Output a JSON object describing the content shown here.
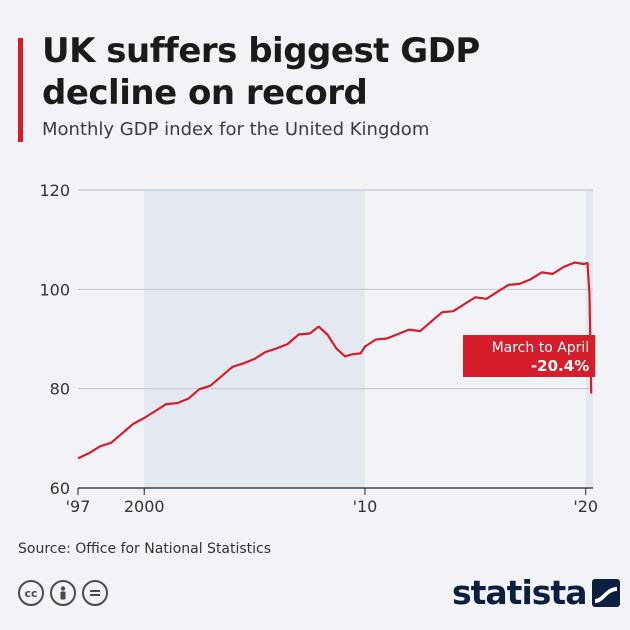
{
  "header": {
    "title": "UK suffers biggest GDP decline on record",
    "subtitle": "Monthly GDP index for the United Kingdom"
  },
  "footer": {
    "source": "Source: Office for National Statistics",
    "brand": "statista",
    "license_icons": [
      "cc-icon",
      "by-icon",
      "nd-icon"
    ]
  },
  "colors": {
    "accent": "#d51d2c",
    "line": "#d51d2c",
    "shade": "#e4e9f1",
    "brand": "#0d1f3f"
  },
  "chart_data": {
    "type": "line",
    "title": "UK suffers biggest GDP decline on record",
    "subtitle": "Monthly GDP index for the United Kingdom",
    "xlabel": "",
    "ylabel": "",
    "ylim": [
      60,
      120
    ],
    "yticks": [
      60,
      80,
      100,
      120
    ],
    "xlim": [
      1997,
      2020.33
    ],
    "xticks": [
      {
        "value": 1997,
        "label": "'97"
      },
      {
        "value": 2000,
        "label": "2000"
      },
      {
        "value": 2010,
        "label": "'10"
      },
      {
        "value": 2020,
        "label": "'20"
      }
    ],
    "grid": true,
    "shaded_ranges": [
      [
        2000,
        2010
      ],
      [
        2020,
        2020.33
      ]
    ],
    "annotation": {
      "line1": "March to April",
      "line2": "-20.4%",
      "x": 2020.25,
      "y": 79
    },
    "series": [
      {
        "x": [
          1997,
          1997.5,
          1998,
          1998.5,
          1999,
          1999.5,
          2000,
          2000.5,
          2001,
          2001.5,
          2002,
          2002.5,
          2003,
          2003.5,
          2004,
          2004.5,
          2005,
          2005.5,
          2006,
          2006.5,
          2007,
          2007.5,
          2007.9,
          2008.3,
          2008.7,
          2009.1,
          2009.4,
          2009.8,
          2010,
          2010.5,
          2011,
          2011.5,
          2012,
          2012.5,
          2013,
          2013.5,
          2014,
          2014.5,
          2015,
          2015.5,
          2016,
          2016.5,
          2017,
          2017.5,
          2018,
          2018.5,
          2019,
          2019.5,
          2019.9,
          2020.08,
          2020.17,
          2020.25
        ],
        "y": [
          66,
          67,
          68,
          69.5,
          71,
          72.5,
          74.5,
          75.5,
          76.5,
          77.5,
          78,
          79.5,
          81,
          82.5,
          84,
          85.5,
          86,
          87,
          88.5,
          89,
          90.5,
          91.5,
          92.5,
          90.5,
          88.5,
          86.5,
          86.5,
          87.5,
          88.5,
          89.5,
          90.5,
          91,
          91.5,
          92,
          93.5,
          95,
          96,
          97,
          98,
          98.5,
          99.5,
          100.5,
          101.5,
          102,
          103,
          103.5,
          104.5,
          105,
          105.5,
          105.3,
          99,
          79
        ]
      }
    ]
  }
}
